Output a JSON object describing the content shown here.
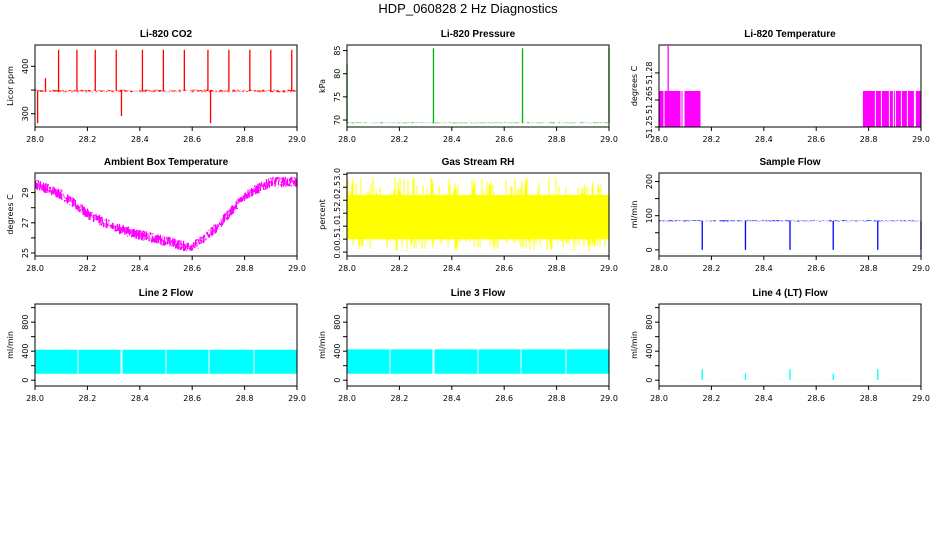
{
  "page_title": "HDP_060828  2 Hz Diagnostics",
  "chart_data": [
    {
      "type": "line",
      "title": "Li-820 CO2",
      "ylabel": "Licor ppm",
      "color": "#ff0000",
      "xlim": [
        28.0,
        29.0
      ],
      "ylim": [
        272,
        445
      ],
      "xticks": [
        28.0,
        28.2,
        28.4,
        28.6,
        28.8,
        29.0
      ],
      "xtick_labels": [
        "28.0",
        "28.2",
        "28.4",
        "28.6",
        "28.8",
        "29.0"
      ],
      "yticks": [
        300,
        350,
        400
      ],
      "ytick_labels": [
        "300",
        "",
        "400"
      ],
      "series": [
        {
          "baseline": 348,
          "noise": 3,
          "spikes": [
            {
              "x": 28.01,
              "y": 280
            },
            {
              "x": 28.04,
              "y": 375
            },
            {
              "x": 28.09,
              "y": 435
            },
            {
              "x": 28.16,
              "y": 435
            },
            {
              "x": 28.23,
              "y": 435
            },
            {
              "x": 28.31,
              "y": 435
            },
            {
              "x": 28.33,
              "y": 295
            },
            {
              "x": 28.41,
              "y": 435
            },
            {
              "x": 28.49,
              "y": 435
            },
            {
              "x": 28.57,
              "y": 435
            },
            {
              "x": 28.66,
              "y": 435
            },
            {
              "x": 28.67,
              "y": 280
            },
            {
              "x": 28.74,
              "y": 435
            },
            {
              "x": 28.82,
              "y": 435
            },
            {
              "x": 28.9,
              "y": 435
            },
            {
              "x": 28.98,
              "y": 435
            }
          ]
        }
      ]
    },
    {
      "type": "line",
      "title": "Li-820 Pressure",
      "ylabel": "kPa",
      "color": "#00b000",
      "xlim": [
        28.0,
        29.0
      ],
      "ylim": [
        68.5,
        86.2
      ],
      "xticks": [
        28.0,
        28.2,
        28.4,
        28.6,
        28.8,
        29.0
      ],
      "xtick_labels": [
        "28.0",
        "28.2",
        "28.4",
        "28.6",
        "28.8",
        "29.0"
      ],
      "yticks": [
        70,
        75,
        80,
        85
      ],
      "ytick_labels": [
        "70",
        "75",
        "80",
        "85"
      ],
      "series": [
        {
          "baseline": 69.4,
          "noise": 0.1,
          "spikes": [
            {
              "x": 28.0,
              "y": 82
            },
            {
              "x": 28.33,
              "y": 85.5
            },
            {
              "x": 28.67,
              "y": 85.5
            },
            {
              "x": 29.0,
              "y": 85.5
            }
          ]
        }
      ]
    },
    {
      "type": "line",
      "title": "Li-820 Temperature",
      "ylabel": "degrees C",
      "color": "#ff00ff",
      "xlim": [
        28.0,
        29.0
      ],
      "ylim": [
        51.25,
        51.2955
      ],
      "xticks": [
        28.0,
        28.2,
        28.4,
        28.6,
        28.8,
        29.0
      ],
      "xtick_labels": [
        "28.0",
        "28.2",
        "28.4",
        "28.6",
        "28.8",
        "29.0"
      ],
      "yticks": [
        51.25,
        51.265,
        51.28
      ],
      "ytick_labels": [
        "51.25",
        "51.265",
        "51.28"
      ],
      "series": [
        {
          "low": 51.25,
          "high": 51.27,
          "toggle_ranges": [
            [
              28.0,
              28.16
            ],
            [
              28.78,
              29.0
            ]
          ],
          "spikes": [
            {
              "x": 28.035,
              "y": 51.295
            }
          ]
        }
      ]
    },
    {
      "type": "line",
      "title": "Ambient Box Temperature",
      "ylabel": "degrees C",
      "color": "#ff00ff",
      "xlim": [
        28.0,
        29.0
      ],
      "ylim": [
        24.8,
        30.3
      ],
      "xticks": [
        28.0,
        28.2,
        28.4,
        28.6,
        28.8,
        29.0
      ],
      "xtick_labels": [
        "28.0",
        "28.2",
        "28.4",
        "28.6",
        "28.8",
        "29.0"
      ],
      "yticks": [
        25,
        26,
        27,
        28,
        29
      ],
      "ytick_labels": [
        "25",
        "",
        "27",
        "",
        "29"
      ],
      "series": [
        {
          "points": [
            [
              28.0,
              29.6
            ],
            [
              28.1,
              28.9
            ],
            [
              28.2,
              27.6
            ],
            [
              28.3,
              26.7
            ],
            [
              28.4,
              26.2
            ],
            [
              28.5,
              25.8
            ],
            [
              28.58,
              25.4
            ],
            [
              28.62,
              25.6
            ],
            [
              28.7,
              26.8
            ],
            [
              28.8,
              28.8
            ],
            [
              28.9,
              29.7
            ],
            [
              29.0,
              29.7
            ]
          ],
          "noise": 0.35
        }
      ]
    },
    {
      "type": "line",
      "title": "Gas Stream RH",
      "ylabel": "percent",
      "color": "#ffff00",
      "xlim": [
        28.0,
        29.0
      ],
      "ylim": [
        -0.15,
        3.05
      ],
      "xticks": [
        28.0,
        28.2,
        28.4,
        28.6,
        28.8,
        29.0
      ],
      "xtick_labels": [
        "28.0",
        "28.2",
        "28.4",
        "28.6",
        "28.8",
        "29.0"
      ],
      "yticks": [
        0.0,
        0.5,
        1.0,
        1.5,
        2.0,
        2.5,
        3.0
      ],
      "ytick_labels": [
        "0.0",
        "0.5",
        "1.0",
        "1.5",
        "2.0",
        "2.5",
        "3.0"
      ],
      "series": [
        {
          "band_low": 0.5,
          "band_high": 2.2,
          "outlier_low": 0.0,
          "outlier_high": 2.9
        }
      ]
    },
    {
      "type": "line",
      "title": "Sample Flow",
      "ylabel": "ml/min",
      "color": "#0000ff",
      "xlim": [
        28.0,
        29.0
      ],
      "ylim": [
        -18,
        225
      ],
      "xticks": [
        28.0,
        28.2,
        28.4,
        28.6,
        28.8,
        29.0
      ],
      "xtick_labels": [
        "28.0",
        "28.2",
        "28.4",
        "28.6",
        "28.8",
        "29.0"
      ],
      "yticks": [
        0,
        50,
        100,
        150,
        200
      ],
      "ytick_labels": [
        "0",
        "",
        "100",
        "",
        "200"
      ],
      "series": [
        {
          "baseline": 85,
          "noise": 2,
          "spikes": [
            {
              "x": 28.165,
              "y": 0
            },
            {
              "x": 28.33,
              "y": 0
            },
            {
              "x": 28.5,
              "y": 0
            },
            {
              "x": 28.665,
              "y": 0
            },
            {
              "x": 28.835,
              "y": 0
            },
            {
              "x": 29.0,
              "y": 0
            }
          ]
        }
      ]
    },
    {
      "type": "line",
      "title": "Line 2 Flow",
      "ylabel": "ml/min",
      "color": "#00ffff",
      "xlim": [
        28.0,
        29.0
      ],
      "ylim": [
        -80,
        1050
      ],
      "xticks": [
        28.0,
        28.2,
        28.4,
        28.6,
        28.8,
        29.0
      ],
      "xtick_labels": [
        "28.0",
        "28.2",
        "28.4",
        "28.6",
        "28.8",
        "29.0"
      ],
      "yticks": [
        0,
        200,
        400,
        600,
        800,
        1000
      ],
      "ytick_labels": [
        "0",
        "",
        "400",
        "",
        "800",
        ""
      ],
      "series": [
        {
          "band_low": 90,
          "band_high": 420,
          "gaps": [
            28.165,
            28.33,
            28.5,
            28.665,
            28.835
          ]
        }
      ]
    },
    {
      "type": "line",
      "title": "Line 3 Flow",
      "ylabel": "ml/min",
      "color": "#00ffff",
      "xlim": [
        28.0,
        29.0
      ],
      "ylim": [
        -80,
        1050
      ],
      "xticks": [
        28.0,
        28.2,
        28.4,
        28.6,
        28.8,
        29.0
      ],
      "xtick_labels": [
        "28.0",
        "28.2",
        "28.4",
        "28.6",
        "28.8",
        "29.0"
      ],
      "yticks": [
        0,
        200,
        400,
        600,
        800,
        1000
      ],
      "ytick_labels": [
        "0",
        "",
        "400",
        "",
        "800",
        ""
      ],
      "series": [
        {
          "band_low": 90,
          "band_high": 425,
          "gaps": [
            28.165,
            28.33,
            28.5,
            28.665,
            28.835
          ]
        }
      ]
    },
    {
      "type": "line",
      "title": "Line 4 (LT) Flow",
      "ylabel": "ml/min",
      "color": "#00ffff",
      "xlim": [
        28.0,
        29.0
      ],
      "ylim": [
        -80,
        1050
      ],
      "xticks": [
        28.0,
        28.2,
        28.4,
        28.6,
        28.8,
        29.0
      ],
      "xtick_labels": [
        "28.0",
        "28.2",
        "28.4",
        "28.6",
        "28.8",
        "29.0"
      ],
      "yticks": [
        0,
        200,
        400,
        600,
        800,
        1000
      ],
      "ytick_labels": [
        "0",
        "",
        "400",
        "",
        "800",
        ""
      ],
      "series": [
        {
          "baseline": 5,
          "noise": 1,
          "spikes": [
            {
              "x": 28.165,
              "y": 150
            },
            {
              "x": 28.33,
              "y": 90
            },
            {
              "x": 28.5,
              "y": 150
            },
            {
              "x": 28.665,
              "y": 90
            },
            {
              "x": 28.835,
              "y": 150
            }
          ]
        }
      ]
    }
  ]
}
